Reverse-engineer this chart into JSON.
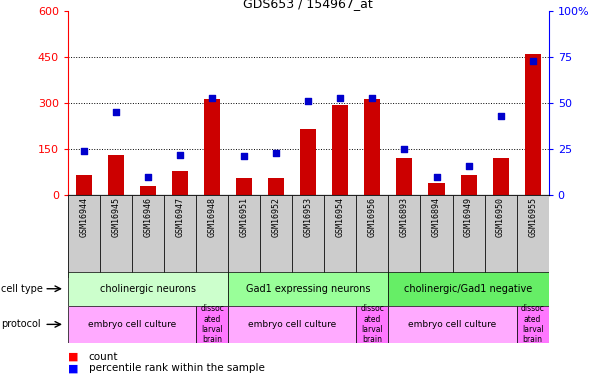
{
  "title": "GDS653 / 154967_at",
  "samples": [
    "GSM16944",
    "GSM16945",
    "GSM16946",
    "GSM16947",
    "GSM16948",
    "GSM16951",
    "GSM16952",
    "GSM16953",
    "GSM16954",
    "GSM16956",
    "GSM16893",
    "GSM16894",
    "GSM16949",
    "GSM16950",
    "GSM16955"
  ],
  "counts": [
    65,
    130,
    30,
    80,
    315,
    55,
    55,
    215,
    295,
    315,
    120,
    40,
    65,
    120,
    460
  ],
  "percentiles": [
    24,
    45,
    10,
    22,
    53,
    21,
    23,
    51,
    53,
    53,
    25,
    10,
    16,
    43,
    73
  ],
  "ylim_left": [
    0,
    600
  ],
  "ylim_right": [
    0,
    100
  ],
  "yticks_left": [
    0,
    150,
    300,
    450,
    600
  ],
  "yticks_right": [
    0,
    25,
    50,
    75,
    100
  ],
  "bar_color": "#cc0000",
  "dot_color": "#0000cc",
  "cell_types": [
    {
      "label": "cholinergic neurons",
      "start": 0,
      "end": 5,
      "color": "#ccffcc"
    },
    {
      "label": "Gad1 expressing neurons",
      "start": 5,
      "end": 10,
      "color": "#99ff99"
    },
    {
      "label": "cholinergic/Gad1 negative",
      "start": 10,
      "end": 15,
      "color": "#66ee66"
    }
  ],
  "protocols": [
    {
      "label": "embryo cell culture",
      "start": 0,
      "end": 4,
      "color": "#ffaaff"
    },
    {
      "label": "dissoc\nated\nlarval\nbrain",
      "start": 4,
      "end": 5,
      "color": "#ff88ff"
    },
    {
      "label": "embryo cell culture",
      "start": 5,
      "end": 9,
      "color": "#ffaaff"
    },
    {
      "label": "dissoc\nated\nlarval\nbrain",
      "start": 9,
      "end": 10,
      "color": "#ff88ff"
    },
    {
      "label": "embryo cell culture",
      "start": 10,
      "end": 14,
      "color": "#ffaaff"
    },
    {
      "label": "dissoc\nated\nlarval\nbrain",
      "start": 14,
      "end": 15,
      "color": "#ff88ff"
    }
  ]
}
